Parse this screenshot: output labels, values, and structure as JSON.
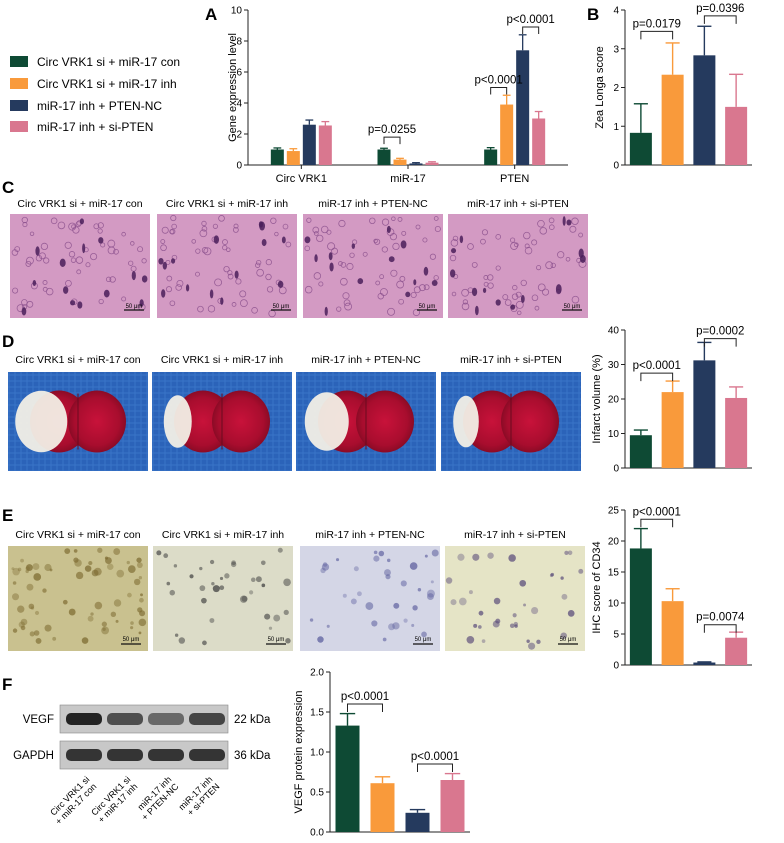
{
  "colors": {
    "series": [
      "#0e4a34",
      "#f99a3b",
      "#253a5e",
      "#d9778f"
    ],
    "he_stain": "#d39ac3",
    "ttc_bg": "#2b63b9",
    "ihc_bg": "#e3e3cb"
  },
  "legend": [
    "Circ VRK1 si + miR-17 con",
    "Circ VRK1 si + miR-17 inh",
    "miR-17 inh + PTEN-NC",
    "miR-17 inh + si-PTEN"
  ],
  "panel_letters": {
    "A": "A",
    "B": "B",
    "C": "C",
    "D": "D",
    "E": "E",
    "F": "F"
  },
  "panel_c": {
    "captions": [
      "Circ VRK1 si + miR-17 con",
      "Circ VRK1 si + miR-17 inh",
      "miR-17 inh + PTEN-NC",
      "miR-17 inh + si-PTEN"
    ],
    "scale_label": "50 μm"
  },
  "panel_d": {
    "captions": [
      "Circ VRK1 si + miR-17 con",
      "Circ VRK1 si + miR-17 inh",
      "miR-17 inh + PTEN-NC",
      "miR-17 inh + si-PTEN"
    ]
  },
  "panel_e": {
    "captions": [
      "Circ VRK1 si + miR-17 con",
      "Circ VRK1 si + miR-17 inh",
      "miR-17 inh + PTEN-NC",
      "miR-17 inh + si-PTEN"
    ],
    "scale_label": "50 μm"
  },
  "panel_f_blot": {
    "rows": [
      {
        "protein": "VEGF",
        "size": "22 kDa"
      },
      {
        "protein": "GAPDH",
        "size": "36 kDa"
      }
    ],
    "lane_labels": [
      [
        "Circ VRK1 si",
        "+ miR-17 con"
      ],
      [
        "Circ VRK1 si",
        "+ miR-17 inh"
      ],
      [
        "miR-17 inh",
        "+ PTEN-NC"
      ],
      [
        "miR-17 inh",
        "+ si-PTEN"
      ]
    ]
  },
  "chart_data": [
    {
      "id": "A",
      "type": "bar",
      "ylabel": "Gene expression level",
      "categories": [
        "Circ VRK1",
        "miR-17",
        "PTEN"
      ],
      "yticks": [
        0,
        2,
        4,
        6,
        8,
        10
      ],
      "ylim": [
        0,
        10
      ],
      "series": [
        {
          "values": [
            1.0,
            1.0,
            1.0
          ],
          "err": [
            0.1,
            0.08,
            0.12
          ]
        },
        {
          "values": [
            0.9,
            0.35,
            3.9
          ],
          "err": [
            0.15,
            0.08,
            0.6
          ]
        },
        {
          "values": [
            2.6,
            0.1,
            7.4
          ],
          "err": [
            0.3,
            0.05,
            1.0
          ]
        },
        {
          "values": [
            2.55,
            0.15,
            3.0
          ],
          "err": [
            0.25,
            0.06,
            0.45
          ]
        }
      ],
      "annotations": [
        {
          "text": "p=0.0255",
          "cat": 1,
          "from": 0,
          "to": 1,
          "y": 1.8
        },
        {
          "text": "p<0.0001",
          "cat": 2,
          "from": 0,
          "to": 1,
          "y": 5.0
        },
        {
          "text": "p<0.0001",
          "cat": 2,
          "from": 2,
          "to": 3,
          "y": 8.9
        }
      ]
    },
    {
      "id": "B",
      "type": "bar",
      "ylabel": "Zea Longa score",
      "categories": [
        "",
        "",
        "",
        ""
      ],
      "yticks": [
        0,
        1,
        2,
        3,
        4
      ],
      "ylim": [
        0,
        4
      ],
      "values": [
        0.83,
        2.33,
        2.83,
        1.5
      ],
      "err": [
        0.75,
        0.82,
        0.75,
        0.84
      ],
      "annotations": [
        {
          "text": "p=0.0179",
          "from": 0,
          "to": 1,
          "y": 3.45
        },
        {
          "text": "p=0.0396",
          "from": 2,
          "to": 3,
          "y": 3.85
        }
      ]
    },
    {
      "id": "D",
      "type": "bar",
      "ylabel": "Infarct volume (%)",
      "categories": [
        "",
        "",
        "",
        ""
      ],
      "yticks": [
        0,
        10,
        20,
        30,
        40
      ],
      "ylim": [
        0,
        40
      ],
      "values": [
        9.5,
        22.0,
        31.2,
        20.3
      ],
      "err": [
        1.5,
        3.2,
        5.2,
        3.2
      ],
      "annotations": [
        {
          "text": "p<0.0001",
          "from": 0,
          "to": 1,
          "y": 27.5
        },
        {
          "text": "p=0.0002",
          "from": 2,
          "to": 3,
          "y": 37.5
        }
      ]
    },
    {
      "id": "E",
      "type": "bar",
      "ylabel": "IHC score of CD34",
      "categories": [
        "",
        "",
        "",
        ""
      ],
      "yticks": [
        0,
        5,
        10,
        15,
        20,
        25
      ],
      "ylim": [
        0,
        25
      ],
      "values": [
        18.8,
        10.3,
        0.4,
        4.4
      ],
      "err": [
        3.2,
        2.0,
        0.1,
        0.9
      ],
      "annotations": [
        {
          "text": "p<0.0001",
          "from": 0,
          "to": 1,
          "y": 23.5
        },
        {
          "text": "p=0.0074",
          "from": 2,
          "to": 3,
          "y": 6.5
        }
      ]
    },
    {
      "id": "F",
      "type": "bar",
      "ylabel": "VEGF protein expression",
      "categories": [
        "",
        "",
        "",
        ""
      ],
      "yticks": [
        0.0,
        0.5,
        1.0,
        1.5,
        2.0
      ],
      "ytick_labels": [
        "0.0",
        "0.5",
        "1.0",
        "1.5",
        "2.0"
      ],
      "ylim": [
        0,
        2
      ],
      "values": [
        1.33,
        0.61,
        0.24,
        0.65
      ],
      "err": [
        0.15,
        0.08,
        0.04,
        0.08
      ],
      "annotations": [
        {
          "text": "p<0.0001",
          "from": 0,
          "to": 1,
          "y": 1.6
        },
        {
          "text": "p<0.0001",
          "from": 2,
          "to": 3,
          "y": 0.85
        }
      ]
    }
  ]
}
